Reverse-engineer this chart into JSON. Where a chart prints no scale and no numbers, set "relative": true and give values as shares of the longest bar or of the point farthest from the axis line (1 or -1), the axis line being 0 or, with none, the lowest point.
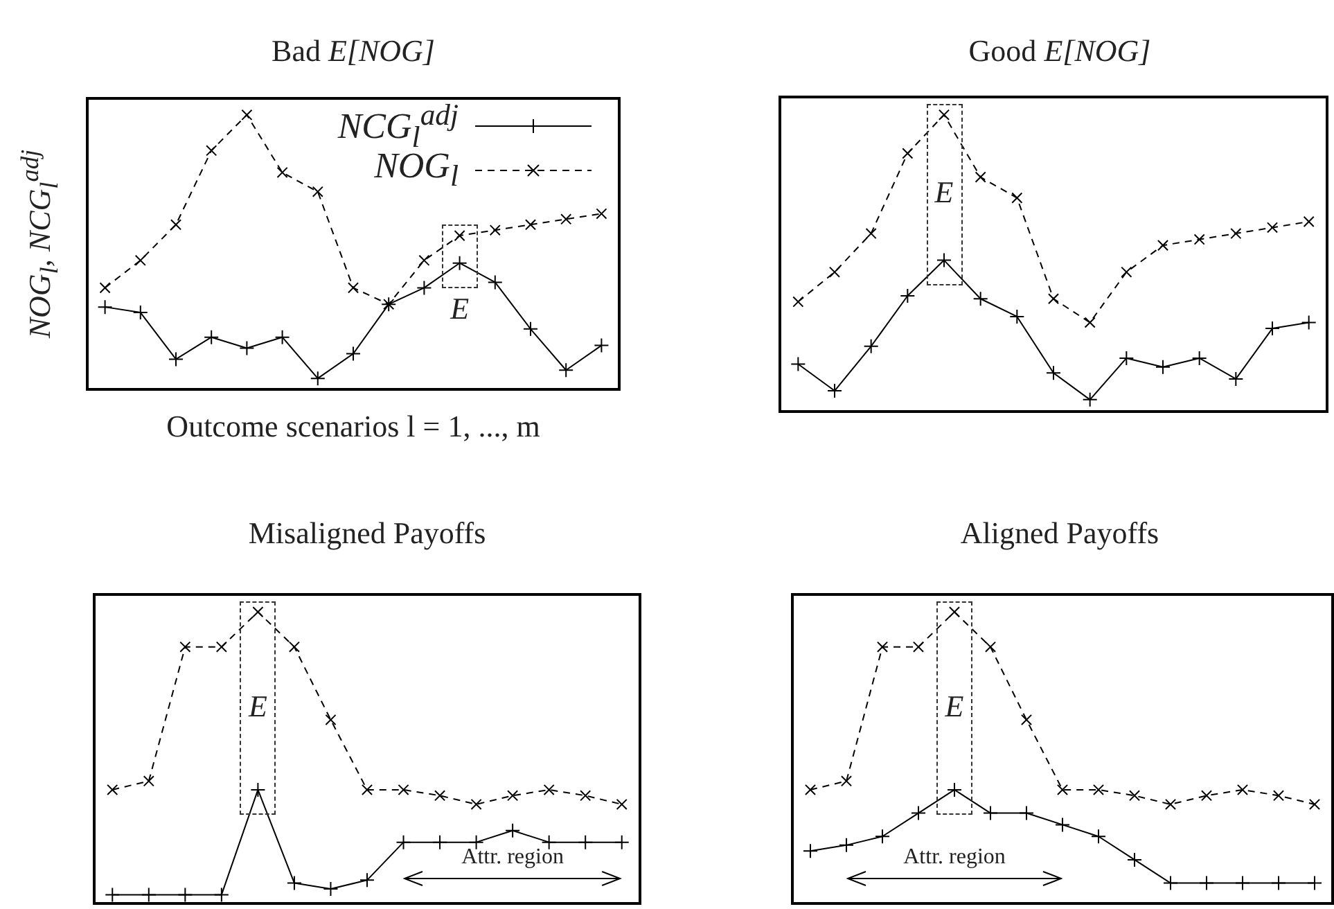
{
  "chart_data": [
    {
      "type": "line",
      "title": "Bad E[NOG]",
      "xlabel": "Outcome scenarios l = 1, ..., m",
      "ylabel": "NOG$_{l}$, NCG$_{l}$$^{adj}$",
      "relative": true,
      "legend": "top right",
      "annotations": [
        "E"
      ],
      "categories": [
        null,
        null,
        null,
        null,
        null,
        null,
        null,
        null,
        null,
        null,
        null,
        null,
        null,
        null,
        null
      ],
      "series": [
        {
          "name": "NCG$_{l}$$^{adj}$",
          "color": "#000000",
          "marker": "cross",
          "line_style": "solid",
          "values": [
            0.3,
            0.28,
            0.11,
            0.19,
            0.15,
            0.19,
            0.04,
            0.13,
            0.31,
            0.37,
            0.46,
            0.39,
            0.22,
            0.07,
            0.16
          ]
        },
        {
          "name": "NOG$_{l}$",
          "color": "#000000",
          "marker": "cross",
          "line_style": "dashed",
          "values": [
            0.37,
            0.47,
            0.6,
            0.87,
            1,
            0.79,
            0.72,
            0.37,
            0.31,
            0.47,
            0.56,
            0.58,
            0.6,
            0.62,
            0.64
          ]
        }
      ]
    },
    {
      "type": "line",
      "title": "Good E[NOG]",
      "relative": true,
      "annotations": [
        "E"
      ],
      "categories": [
        null,
        null,
        null,
        null,
        null,
        null,
        null,
        null,
        null,
        null,
        null,
        null,
        null,
        null,
        null
      ],
      "series": [
        {
          "color": "#000000",
          "marker": "cross",
          "line_style": "solid",
          "values": [
            0.16,
            0.07,
            0.22,
            0.39,
            0.51,
            0.38,
            0.32,
            0.13,
            0.04,
            0.18,
            0.15,
            0.18,
            0.11,
            0.28,
            0.3
          ]
        },
        {
          "color": "#000000",
          "marker": "cross",
          "line_style": "dashed",
          "values": [
            0.37,
            0.47,
            0.6,
            0.87,
            1,
            0.79,
            0.72,
            0.38,
            0.3,
            0.47,
            0.56,
            0.58,
            0.6,
            0.62,
            0.64
          ]
        }
      ]
    },
    {
      "type": "line",
      "title": "Misaligned Payoffs",
      "relative": true,
      "annotations": [
        "E",
        "Attr. region"
      ],
      "categories": [
        null,
        null,
        null,
        null,
        null,
        null,
        null,
        null,
        null,
        null,
        null,
        null,
        null,
        null,
        null
      ],
      "series": [
        {
          "color": "#000000",
          "marker": "cross",
          "line_style": "solid",
          "values": [
            0.03,
            0.03,
            0.03,
            0.03,
            0.39,
            0.07,
            0.05,
            0.08,
            0.21,
            0.21,
            0.21,
            0.25,
            0.21,
            0.21,
            0.21
          ]
        },
        {
          "color": "#000000",
          "marker": "cross",
          "line_style": "dashed",
          "values": [
            0.39,
            0.42,
            0.88,
            0.88,
            1,
            0.88,
            0.63,
            0.39,
            0.39,
            0.37,
            0.34,
            0.37,
            0.39,
            0.37,
            0.34
          ]
        }
      ]
    },
    {
      "type": "line",
      "title": "Aligned Payoffs",
      "relative": true,
      "annotations": [
        "E",
        "Attr. region"
      ],
      "categories": [
        null,
        null,
        null,
        null,
        null,
        null,
        null,
        null,
        null,
        null,
        null,
        null,
        null,
        null,
        null
      ],
      "series": [
        {
          "color": "#000000",
          "marker": "cross",
          "line_style": "solid",
          "values": [
            0.18,
            0.2,
            0.23,
            0.31,
            0.39,
            0.31,
            0.31,
            0.27,
            0.23,
            0.15,
            0.07,
            0.07,
            0.07,
            0.07,
            0.07
          ]
        },
        {
          "color": "#000000",
          "marker": "cross",
          "line_style": "dashed",
          "values": [
            0.39,
            0.42,
            0.88,
            0.88,
            1,
            0.88,
            0.63,
            0.39,
            0.39,
            0.37,
            0.34,
            0.37,
            0.39,
            0.37,
            0.34
          ]
        }
      ]
    }
  ]
}
